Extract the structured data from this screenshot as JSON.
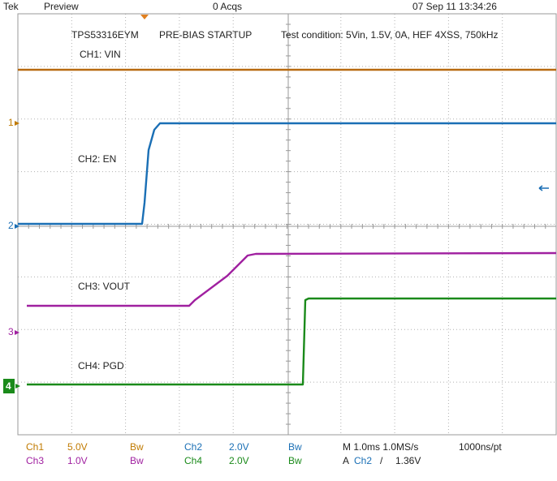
{
  "header": {
    "brand": "Tek",
    "mode": "Preview",
    "acquisitions": "0 Acqs",
    "timestamp": "07 Sep 11 13:34:26"
  },
  "annotations": {
    "device": "TPS53316EYM",
    "test": "PRE-BIAS STARTUP",
    "condition": "Test condition: 5Vin, 1.5V, 0A, HEF 4XSS, 750kHz",
    "ch1": "CH1: VIN",
    "ch2": "CH2: EN",
    "ch3": "CH3: VOUT",
    "ch4": "CH4: PGD"
  },
  "channel_markers": [
    "1",
    "2",
    "3",
    "4"
  ],
  "readout": {
    "rows": [
      [
        "Ch1",
        "5.0V",
        "Bw",
        "Ch2",
        "2.0V",
        "Bw",
        "M 1.0ms 1.0MS/s",
        "1000ns/pt"
      ],
      [
        "Ch3",
        "1.0V",
        "Bw",
        "Ch4",
        "2.0V",
        "Bw",
        "A",
        "Ch2",
        "/",
        "1.36V"
      ]
    ]
  }
}
